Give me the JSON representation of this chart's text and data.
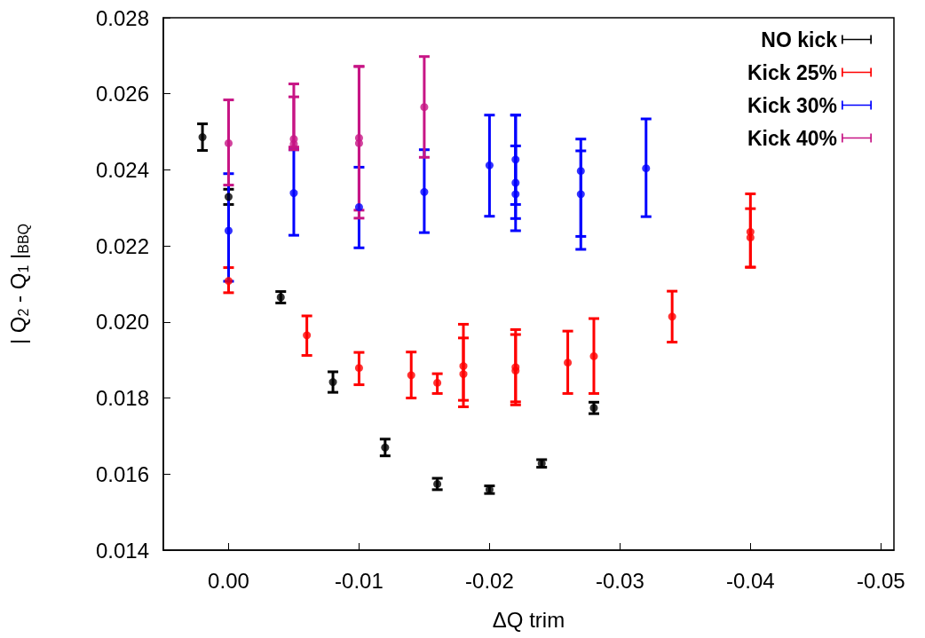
{
  "chart_data": {
    "type": "scatter",
    "xlabel": "ΔQ trim",
    "ylabel": "| Q$_{2}$ - Q$_{1}$ |$_{BBQ}$",
    "xlim": [
      0.005,
      -0.051
    ],
    "xticks": [
      {
        "value": 0,
        "label": "0.00"
      },
      -0.01,
      -0.02,
      -0.03,
      -0.04,
      -0.05
    ],
    "ylim": [
      0.014,
      0.028
    ],
    "yticks": [
      0.014,
      0.016,
      0.018,
      {
        "value": 0.02,
        "label": "0.020"
      },
      0.022,
      0.024,
      0.026,
      0.028
    ],
    "grid": false,
    "legend": "top right",
    "marker": "circle",
    "series": [
      {
        "name": "NO kick",
        "color": "#000000",
        "x": [
          0.002,
          0,
          -0.004,
          -0.008,
          -0.012,
          -0.016,
          -0.02,
          -0.024,
          -0.028
        ],
        "values": [
          0.02486,
          0.02329,
          0.02065,
          0.01842,
          0.0167,
          0.01574,
          0.01559,
          0.01628,
          0.01774
        ],
        "errors": [
          0.00035,
          0.0002,
          0.00015,
          0.00027,
          0.00022,
          0.00015,
          0.0001,
          0.0001,
          0.00015
        ]
      },
      {
        "name": "Kick 25%",
        "color": "#ff0000",
        "x": [
          0,
          -0.006,
          -0.01,
          -0.014,
          -0.016,
          -0.018,
          -0.018,
          -0.022,
          -0.022,
          -0.026,
          -0.028,
          -0.034,
          -0.04,
          -0.04
        ],
        "values": [
          0.02108,
          0.01965,
          0.01879,
          0.0186,
          0.0184,
          0.01884,
          0.01863,
          0.01881,
          0.01872,
          0.01893,
          0.0191,
          0.02014,
          0.02237,
          0.02222
        ],
        "errors": [
          [
            0.02077,
            0.02143
          ],
          [
            0.01912,
            0.02016
          ],
          [
            0.01835,
            0.0192
          ],
          [
            0.018,
            0.01921
          ],
          [
            0.01812,
            0.01864
          ],
          [
            0.01777,
            0.01994
          ],
          [
            0.01794,
            0.01958
          ],
          [
            0.01782,
            0.0198
          ],
          [
            0.0179,
            0.01967
          ],
          [
            0.01812,
            0.01976
          ],
          [
            0.01812,
            0.02009
          ],
          [
            0.01947,
            0.02081
          ],
          [
            0.02144,
            0.02337
          ],
          [
            0.02144,
            0.02298
          ]
        ]
      },
      {
        "name": "Kick 30%",
        "color": "#0000ff",
        "x": [
          0,
          -0.005,
          -0.01,
          -0.015,
          -0.02,
          -0.022,
          -0.022,
          -0.022,
          -0.027,
          -0.027,
          -0.032
        ],
        "values": [
          0.0224,
          0.02339,
          0.02302,
          0.02342,
          0.02412,
          0.02427,
          0.02366,
          0.02336,
          0.02397,
          0.02336,
          0.02404
        ],
        "errors": [
          [
            0.02107,
            0.0239
          ],
          [
            0.02228,
            0.02453
          ],
          [
            0.02195,
            0.02407
          ],
          [
            0.02235,
            0.02453
          ],
          [
            0.02278,
            0.02544
          ],
          [
            0.02272,
            0.02544
          ],
          [
            0.0224,
            0.02463
          ],
          [
            0.02309,
            0.02544
          ],
          [
            0.02191,
            0.02481
          ],
          [
            0.02225,
            0.0245
          ],
          [
            0.02277,
            0.02534
          ]
        ]
      },
      {
        "name": "Kick 40%",
        "color": "#c71585",
        "x": [
          0,
          -0.005,
          -0.005,
          -0.01,
          -0.01,
          -0.015
        ],
        "values": [
          0.0247,
          0.02481,
          0.02468,
          0.02484,
          0.0247,
          0.02565
        ],
        "errors": [
          [
            0.0236,
            0.02584
          ],
          [
            0.02453,
            0.02626
          ],
          [
            0.0246,
            0.02592
          ],
          [
            0.02294,
            0.02672
          ],
          [
            0.02273,
            0.02672
          ],
          [
            0.02433,
            0.02698
          ]
        ]
      }
    ]
  }
}
